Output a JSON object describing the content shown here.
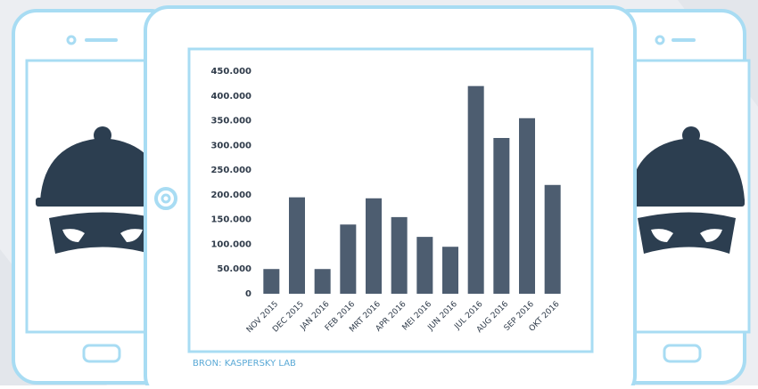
{
  "chart_data": {
    "type": "bar",
    "categories": [
      "NOV 2015",
      "DEC 2015",
      "JAN 2016",
      "FEB 2016",
      "MRT 2016",
      "APR 2016",
      "MEI 2016",
      "JUN 2016",
      "JUL 2016",
      "AUG 2016",
      "SEP 2016",
      "OKT 2016"
    ],
    "values": [
      50000,
      195000,
      50000,
      140000,
      193000,
      155000,
      115000,
      95000,
      420000,
      315000,
      355000,
      220000
    ],
    "color": "#4d5d70",
    "ylim": [
      0,
      450000
    ],
    "yticks": [
      0,
      {
        "value": 50000,
        "label": "50.000"
      },
      {
        "value": 100000,
        "label": "100.000"
      },
      {
        "value": 150000,
        "label": "150.000"
      },
      {
        "value": 200000,
        "label": "200.000"
      },
      {
        "value": 250000,
        "label": "250.000"
      },
      {
        "value": 300000,
        "label": "300.000"
      },
      {
        "value": 350000,
        "label": "350.000"
      },
      {
        "value": 400000,
        "label": "400.000"
      },
      {
        "value": 450000,
        "label": "450.000"
      }
    ],
    "grid": false,
    "source": "BRON: KASPERSKY LAB"
  }
}
